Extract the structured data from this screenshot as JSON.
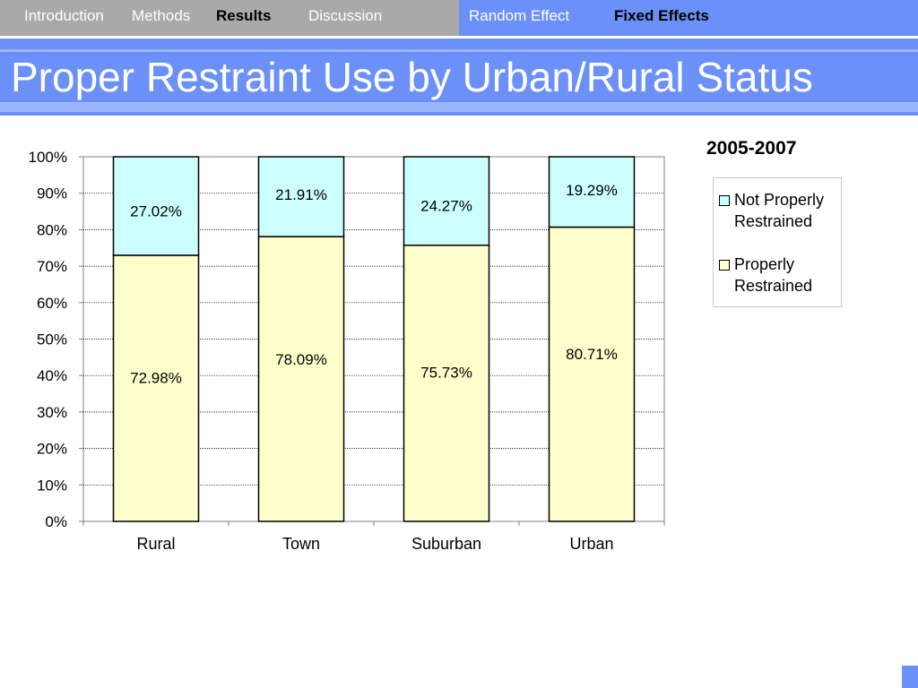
{
  "nav": {
    "left_items": [
      {
        "label": "Introduction",
        "active": false
      },
      {
        "label": "Methods",
        "active": false
      },
      {
        "label": "Results",
        "active": true
      },
      {
        "label": "Discussion",
        "active": false
      }
    ],
    "right_items": [
      {
        "label": "Random Effect",
        "active": false
      },
      {
        "label": "Fixed Effects",
        "active": true
      }
    ]
  },
  "slide": {
    "title": "Proper Restraint Use by Urban/Rural Status",
    "period": "2005-2007"
  },
  "colors": {
    "nav_left_bg": "#a9a9a9",
    "nav_right_bg": "#6b90f7",
    "title_bg": "#6b90f7",
    "not_properly": "#ccffff",
    "properly": "#ffffcc"
  },
  "chart_data": {
    "type": "bar",
    "stacked": true,
    "categories": [
      "Rural",
      "Town",
      "Suburban",
      "Urban"
    ],
    "series": [
      {
        "name": "Properly Restrained",
        "values": [
          72.98,
          78.09,
          75.73,
          80.71
        ],
        "labels": [
          "72.98%",
          "78.09%",
          "75.73%",
          "80.71%"
        ],
        "color": "#ffffcc"
      },
      {
        "name": "Not Properly Restrained",
        "values": [
          27.02,
          21.91,
          24.27,
          19.29
        ],
        "labels": [
          "27.02%",
          "21.91%",
          "24.27%",
          "19.29%"
        ],
        "color": "#ccffff"
      }
    ],
    "ylim": [
      0,
      100
    ],
    "yticks": [
      "0%",
      "10%",
      "20%",
      "30%",
      "40%",
      "50%",
      "60%",
      "70%",
      "80%",
      "90%",
      "100%"
    ],
    "grid": true,
    "legend_position": "right"
  },
  "legend": {
    "items": [
      {
        "line1": "Not Properly",
        "line2": "Restrained"
      },
      {
        "line1": "Properly",
        "line2": "Restrained"
      }
    ]
  }
}
